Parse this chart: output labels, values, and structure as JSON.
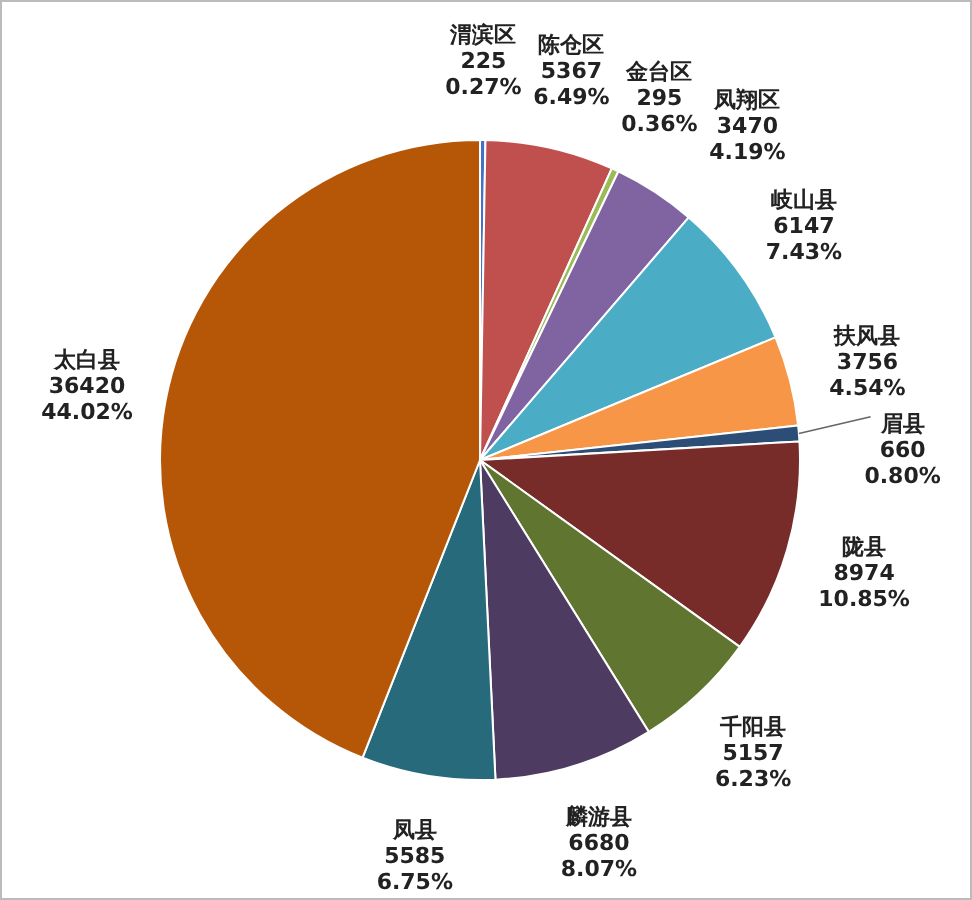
{
  "chart_data": {
    "type": "pie",
    "categories": [
      "渭滨区",
      "陈仓区",
      "金台区",
      "凤翔区",
      "岐山县",
      "扶风县",
      "眉县",
      "陇县",
      "千阳县",
      "麟游县",
      "凤县",
      "太白县"
    ],
    "values": [
      225,
      5367,
      295,
      3470,
      6147,
      3756,
      660,
      8974,
      5157,
      6680,
      5585,
      36420
    ],
    "colors": [
      "#4472c4",
      "#c0504d",
      "#9bbb59",
      "#8064a2",
      "#4bacc6",
      "#f79646",
      "#2c4d75",
      "#772c2a",
      "#5f7530",
      "#4d3b62",
      "#276a7c",
      "#b65708"
    ],
    "value_labels": [
      "225\n0.27%",
      "5367\n6.49%",
      "295\n0.36%",
      "3470\n4.19%",
      "6147\n7.43%",
      "3756\n4.54%",
      "660\n0.80%",
      "8974\n10.85%",
      "5157\n6.23%",
      "6680\n8.07%",
      "5585\n6.75%",
      "36420\n44.02%"
    ]
  }
}
